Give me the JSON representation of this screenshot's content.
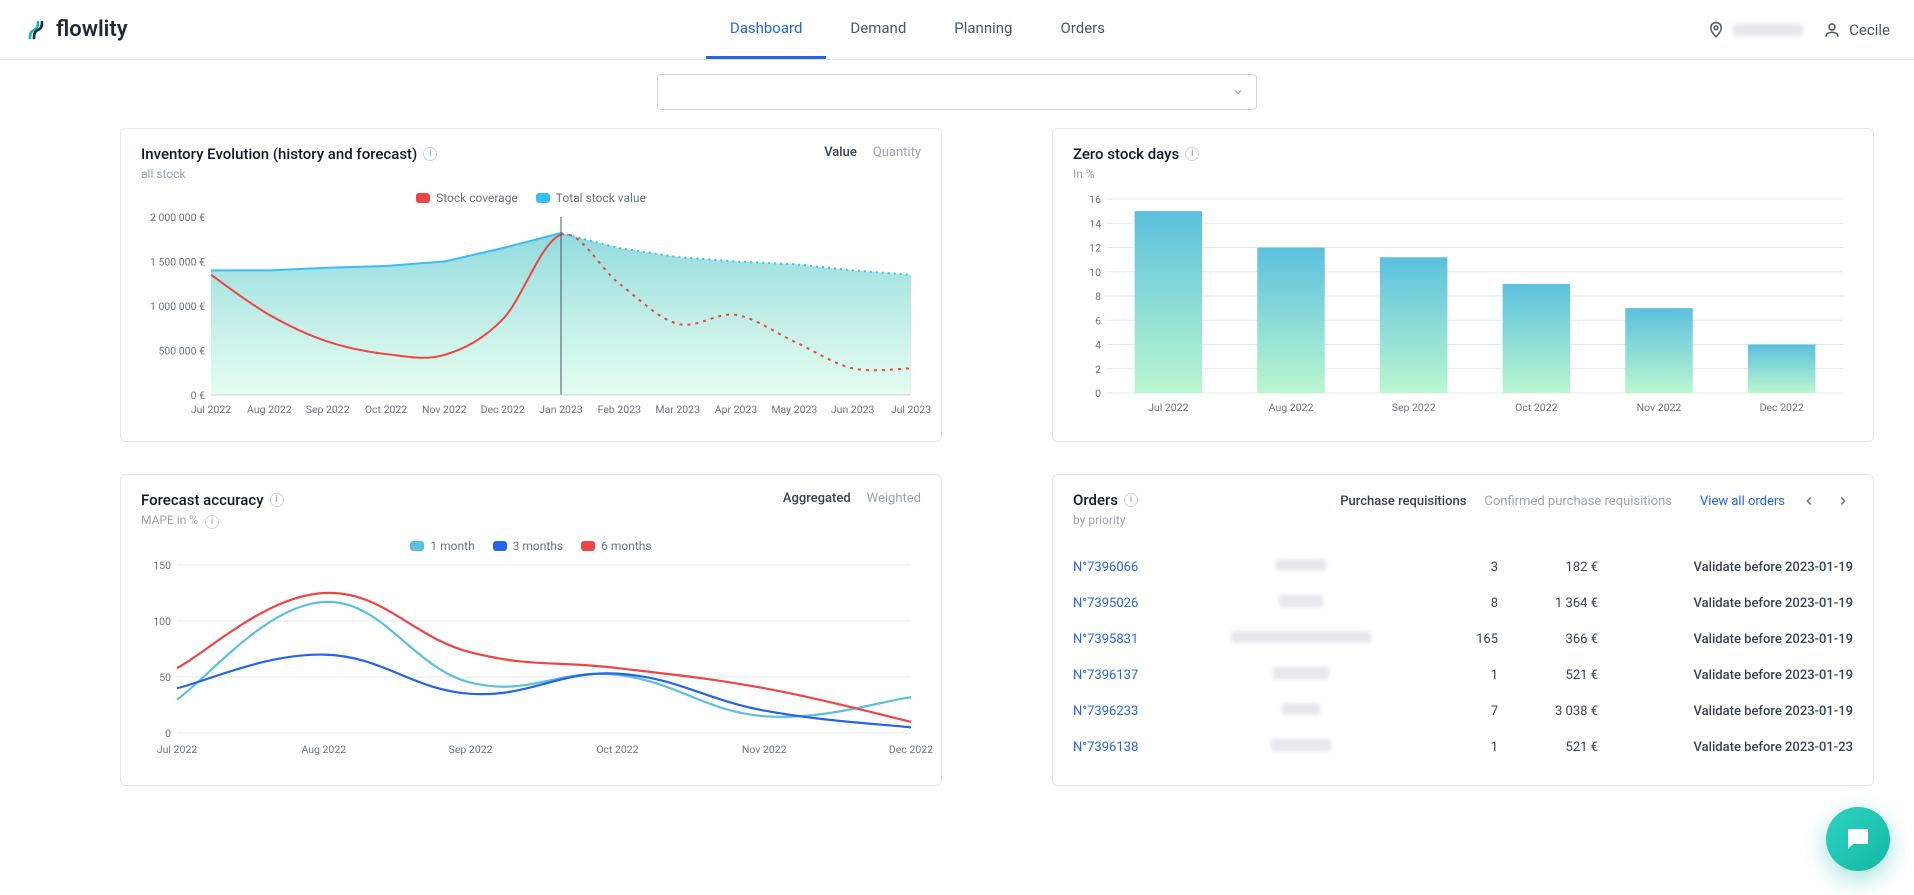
{
  "brand": {
    "name": "flowlity",
    "logo_color_a": "#14b8a6",
    "logo_color_b": "#0b2e3b"
  },
  "nav": {
    "items": [
      {
        "label": "Dashboard",
        "active": true
      },
      {
        "label": "Demand",
        "active": false
      },
      {
        "label": "Planning",
        "active": false
      },
      {
        "label": "Orders",
        "active": false
      }
    ]
  },
  "header_right": {
    "location_blur_width": 70,
    "user": "Cecile"
  },
  "inventory": {
    "title": "Inventory Evolution (history and forecast)",
    "subtitle": "all stock",
    "toggles": {
      "value": "Value",
      "quantity": "Quantity",
      "active": "value"
    },
    "legend": [
      {
        "label": "Stock coverage",
        "color": "#ef4444"
      },
      {
        "label": "Total stock value",
        "color": "#38bdf8"
      }
    ],
    "type": "area-line",
    "y_unit": "€",
    "ylim": [
      0,
      2000000
    ],
    "ytick_step": 500000,
    "y_labels": [
      "0 €",
      "500 000 €",
      "1 000 000 €",
      "1 500 000 €",
      "2 000 000 €"
    ],
    "x_labels": [
      "Jul 2022",
      "Aug 2022",
      "Sep 2022",
      "Oct 2022",
      "Nov 2022",
      "Dec 2022",
      "Jan 2023",
      "Feb 2023",
      "Mar 2023",
      "Apr 2023",
      "May 2023",
      "Jun 2023",
      "Jul 2023"
    ],
    "divider_index": 6,
    "area_color_top": "#7dd3d8",
    "area_color_bottom": "#d1fae5",
    "line_color_total": "#38bdf8",
    "line_color_coverage": "#ef4444",
    "area_values": [
      1400000,
      1400000,
      1430000,
      1450000,
      1500000,
      1650000,
      1820000,
      1650000,
      1550000,
      1500000,
      1470000,
      1400000,
      1350000
    ],
    "coverage_values": [
      1350000,
      900000,
      600000,
      460000,
      450000,
      850000,
      1800000,
      1250000,
      800000,
      900000,
      600000,
      300000,
      300000
    ],
    "coverage_dashed_from": 6,
    "background_color": "#ffffff",
    "grid_color": "#e5e7eb"
  },
  "zero_stock": {
    "title": "Zero stock days",
    "subtitle": "In %",
    "type": "bar",
    "ylim": [
      0,
      16
    ],
    "ytick_step": 2,
    "y_labels": [
      "0",
      "2",
      "4",
      "6",
      "8",
      "10",
      "12",
      "14",
      "16"
    ],
    "x_labels": [
      "Jul 2022",
      "Aug 2022",
      "Sep 2022",
      "Oct 2022",
      "Nov 2022",
      "Dec 2022"
    ],
    "values": [
      15,
      12,
      11.2,
      9,
      7,
      4
    ],
    "bar_gradient_top": "#5bc0de",
    "bar_gradient_bottom": "#bbf7d0",
    "bar_width": 0.55,
    "grid_color": "#e5e7eb"
  },
  "forecast": {
    "title": "Forecast accuracy",
    "subtitle": "MAPE in %",
    "toggles": {
      "aggregated": "Aggregated",
      "weighted": "Weighted",
      "active": "aggregated"
    },
    "type": "line",
    "legend": [
      {
        "label": "1 month",
        "color": "#5bc0de"
      },
      {
        "label": "3 months",
        "color": "#2563eb"
      },
      {
        "label": "6 months",
        "color": "#ef4444"
      }
    ],
    "ylim": [
      0,
      150
    ],
    "ytick_step": 50,
    "y_labels": [
      "0",
      "50",
      "100",
      "150"
    ],
    "x_labels": [
      "Jul 2022",
      "Aug 2022",
      "Sep 2022",
      "Oct 2022",
      "Nov 2022",
      "Dec 2022"
    ],
    "series": {
      "one_month": [
        30,
        117,
        45,
        52,
        15,
        32
      ],
      "three_months": [
        40,
        70,
        35,
        53,
        20,
        5
      ],
      "six_months": [
        58,
        125,
        72,
        58,
        40,
        10
      ]
    },
    "grid_color": "#e5e7eb",
    "line_width": 2.2
  },
  "orders": {
    "title": "Orders",
    "subtitle": "by priority",
    "tabs": {
      "purchase": "Purchase requisitions",
      "confirmed": "Confirmed purchase requisitions",
      "active": "purchase"
    },
    "view_all": "View all orders",
    "rows": [
      {
        "id": "N°7396066",
        "blur_w": 50,
        "qty": "3",
        "amount": "182 €",
        "deadline": "Validate before 2023-01-19"
      },
      {
        "id": "N°7395026",
        "blur_w": 44,
        "qty": "8",
        "amount": "1 364 €",
        "deadline": "Validate before 2023-01-19"
      },
      {
        "id": "N°7395831",
        "blur_w": 140,
        "qty": "165",
        "amount": "366 €",
        "deadline": "Validate before 2023-01-19"
      },
      {
        "id": "N°7396137",
        "blur_w": 56,
        "qty": "1",
        "amount": "521 €",
        "deadline": "Validate before 2023-01-19"
      },
      {
        "id": "N°7396233",
        "blur_w": 38,
        "qty": "7",
        "amount": "3 038 €",
        "deadline": "Validate before 2023-01-19"
      },
      {
        "id": "N°7396138",
        "blur_w": 60,
        "qty": "1",
        "amount": "521 €",
        "deadline": "Validate before 2023-01-23"
      }
    ]
  }
}
